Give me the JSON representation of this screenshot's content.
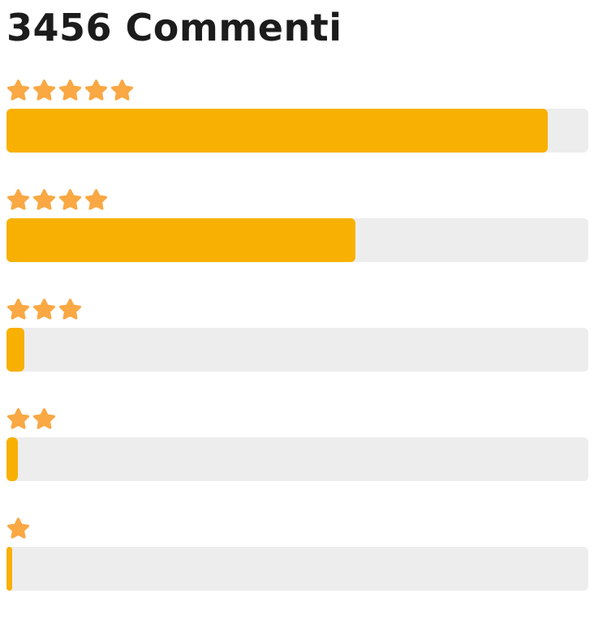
{
  "title": "3456 Commenti",
  "colors": {
    "star": "#F9A843",
    "bar_fill": "#F8B002",
    "bar_track": "#EDEDED",
    "title_text": "#1C1C1C",
    "page_bg": "#FFFFFF"
  },
  "rows": [
    {
      "stars": 5,
      "percent": 93
    },
    {
      "stars": 4,
      "percent": 60
    },
    {
      "stars": 3,
      "percent": 3
    },
    {
      "stars": 2,
      "percent": 2
    },
    {
      "stars": 1,
      "percent": 1
    }
  ],
  "chart_data": {
    "type": "bar",
    "orientation": "horizontal",
    "title": "3456 Commenti",
    "total_comments": 3456,
    "categories": [
      "5 stars",
      "4 stars",
      "3 stars",
      "2 stars",
      "1 star"
    ],
    "values": [
      93,
      60,
      3,
      2,
      1
    ],
    "xlabel": "",
    "ylabel": "star rating",
    "xlim": [
      0,
      100
    ],
    "grid": false,
    "legend": "none",
    "bar_color": "#F8B002",
    "track_color": "#EDEDED"
  }
}
